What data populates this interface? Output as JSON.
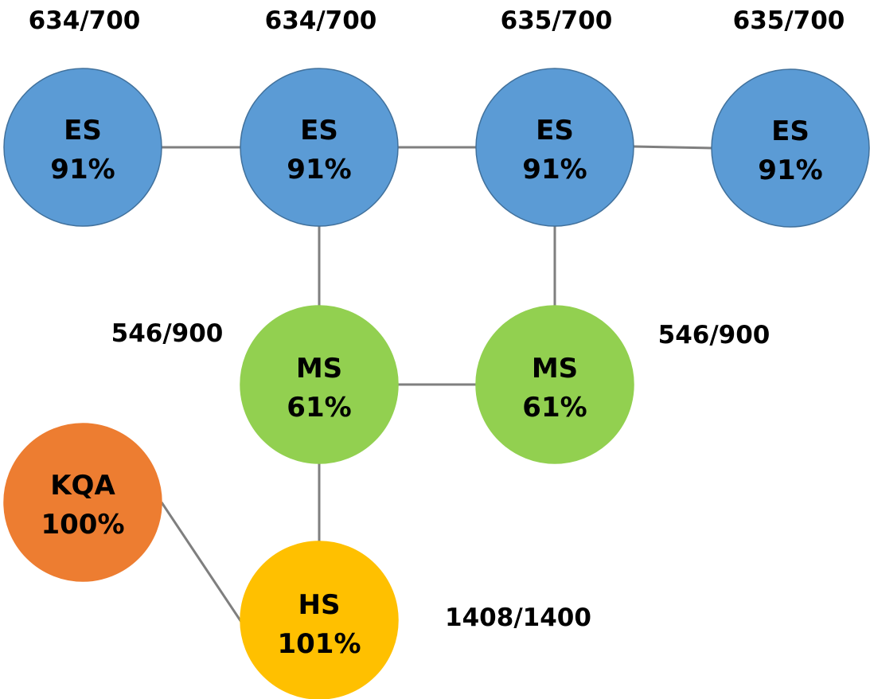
{
  "nodes": {
    "es1": {
      "name": "ES",
      "value": "91%",
      "capacity": "634/700"
    },
    "es2": {
      "name": "ES",
      "value": "91%",
      "capacity": "634/700"
    },
    "es3": {
      "name": "ES",
      "value": "91%",
      "capacity": "635/700"
    },
    "es4": {
      "name": "ES",
      "value": "91%",
      "capacity": "635/700"
    },
    "ms1": {
      "name": "MS",
      "value": "61%",
      "capacity": "546/900"
    },
    "ms2": {
      "name": "MS",
      "value": "61%",
      "capacity": "546/900"
    },
    "hs": {
      "name": "HS",
      "value": "101%",
      "capacity": "1408/1400"
    },
    "kqa": {
      "name": "KQA",
      "value": "100%"
    }
  },
  "colors": {
    "es": "#5b9bd5",
    "ms": "#92d050",
    "hs": "#ffc000",
    "kqa": "#ed7d31",
    "edge": "#7f7f7f"
  }
}
